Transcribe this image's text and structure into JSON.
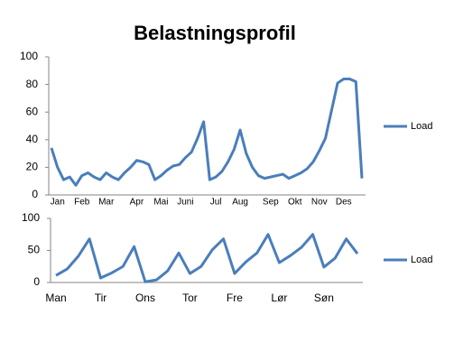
{
  "chart_data": [
    {
      "type": "line",
      "title": "Belastningsprofil",
      "categories": [
        null,
        "Jan",
        null,
        null,
        null,
        "Feb",
        null,
        null,
        null,
        "Mar",
        null,
        null,
        null,
        null,
        "Apr",
        null,
        null,
        null,
        "Mai",
        null,
        null,
        null,
        "Juni",
        null,
        null,
        null,
        null,
        "Jul",
        null,
        null,
        null,
        "Aug",
        null,
        null,
        null,
        null,
        "Sep",
        null,
        null,
        null,
        "Okt",
        null,
        null,
        null,
        "Nov",
        null,
        null,
        null,
        "Des",
        null,
        null,
        null
      ],
      "series": [
        {
          "name": "Load",
          "color": "#4a7ebb",
          "values": [
            34,
            20,
            11,
            13,
            7,
            14,
            16,
            13,
            11,
            16,
            13,
            11,
            16,
            20,
            25,
            24,
            22,
            11,
            14,
            18,
            21,
            22,
            27,
            31,
            41,
            53,
            11,
            13,
            17,
            24,
            33,
            47,
            30,
            20,
            14,
            12,
            13,
            14,
            15,
            12,
            14,
            16,
            19,
            24,
            32,
            41,
            61,
            81,
            84,
            84,
            82,
            12
          ]
        }
      ],
      "ylim": [
        0,
        100
      ],
      "yticks": [
        0,
        20,
        40,
        60,
        80,
        100
      ],
      "grid": false,
      "legend": "right"
    },
    {
      "type": "line",
      "categories": [
        "Man",
        null,
        null,
        null,
        "Tir",
        null,
        null,
        null,
        "Ons",
        null,
        null,
        null,
        "Tor",
        null,
        null,
        null,
        "Fre",
        null,
        null,
        null,
        "Lør",
        null,
        null,
        null,
        "Søn",
        null,
        null,
        null
      ],
      "series": [
        {
          "name": "Load",
          "color": "#4a7ebb",
          "values": [
            11,
            21,
            41,
            68,
            7,
            15,
            25,
            56,
            1,
            4,
            18,
            46,
            14,
            25,
            51,
            68,
            14,
            32,
            46,
            75,
            31,
            42,
            55,
            75,
            24,
            38,
            68,
            45
          ]
        }
      ],
      "ylim": [
        0,
        100
      ],
      "yticks": [
        0,
        50,
        100
      ],
      "grid": false,
      "legend": "right"
    }
  ]
}
